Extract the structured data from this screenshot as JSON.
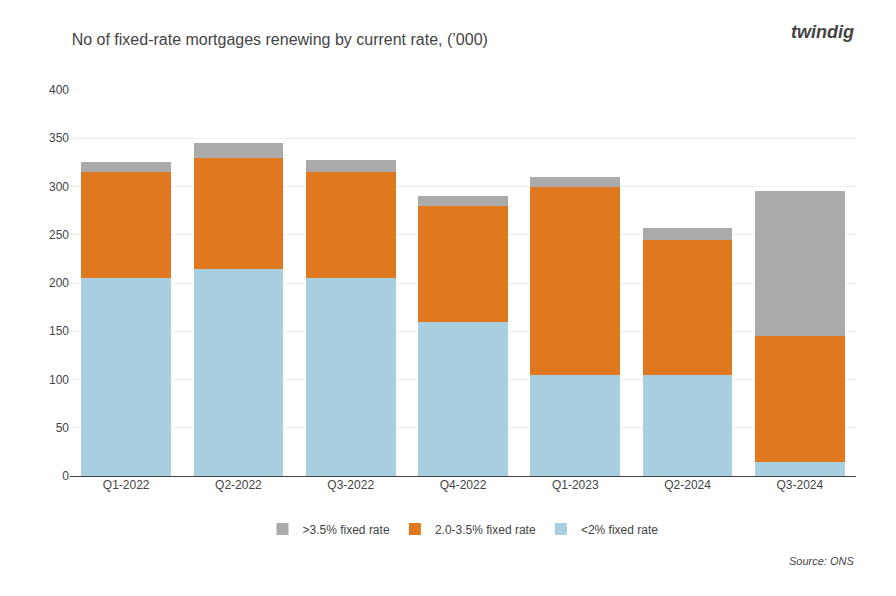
{
  "chart_data": {
    "type": "bar",
    "title": "No of fixed-rate mortgages renewing by current rate, (’000)",
    "categories": [
      "Q1-2022",
      "Q2-2022",
      "Q3-2022",
      "Q4-2022",
      "Q1-2023",
      "Q2-2024",
      "Q3-2024"
    ],
    "series": [
      {
        "name": "<2% fixed rate",
        "color": "#a8cfe0",
        "values": [
          205,
          215,
          205,
          160,
          105,
          105,
          15
        ]
      },
      {
        "name": "2.0-3.5% fixed rate",
        "color": "#e07820",
        "values": [
          110,
          115,
          110,
          120,
          195,
          140,
          130
        ]
      },
      {
        "name": ">3.5% fixed rate",
        "color": "#aaaaaa",
        "values": [
          10,
          15,
          12,
          10,
          10,
          12,
          150
        ]
      }
    ],
    "stacked": true,
    "ylim": [
      0,
      400
    ],
    "yticks": [
      0,
      50,
      100,
      150,
      200,
      250,
      300,
      350,
      400
    ],
    "grid": true,
    "legend": "bottom",
    "annotations": [
      "twindig",
      "Source: ONS"
    ]
  }
}
